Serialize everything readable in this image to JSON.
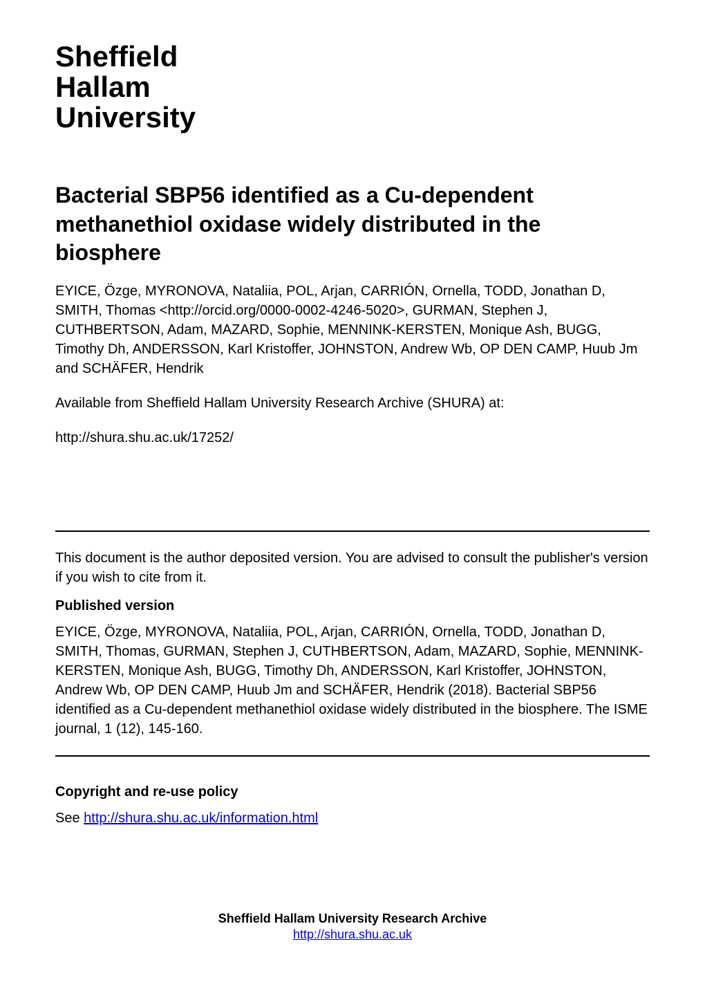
{
  "logo": {
    "line1": "Sheffield",
    "line2": "Hallam",
    "line3": "University"
  },
  "title": "Bacterial SBP56 identified as a Cu-dependent methanethiol oxidase widely distributed in the biosphere",
  "authors": "EYICE, Özge, MYRONOVA, Nataliia, POL, Arjan, CARRIÓN, Ornella, TODD, Jonathan D, SMITH, Thomas <http://orcid.org/0000-0002-4246-5020>, GURMAN, Stephen J, CUTHBERTSON, Adam, MAZARD, Sophie, MENNINK-KERSTEN, Monique Ash, BUGG, Timothy Dh, ANDERSSON, Karl Kristoffer, JOHNSTON, Andrew Wb, OP DEN CAMP, Huub Jm and SCHÄFER, Hendrik",
  "archive_note": "Available from Sheffield Hallam University Research Archive (SHURA) at:",
  "url": "http://shura.shu.ac.uk/17252/",
  "deposit_note": "This document is the author deposited version.  You are advised to consult the publisher's version if you wish to cite from it.",
  "published_version_heading": "Published version",
  "citation": "EYICE, Özge, MYRONOVA, Nataliia, POL, Arjan, CARRIÓN, Ornella, TODD, Jonathan D, SMITH, Thomas, GURMAN, Stephen J, CUTHBERTSON, Adam, MAZARD, Sophie, MENNINK-KERSTEN, Monique Ash, BUGG, Timothy Dh, ANDERSSON, Karl Kristoffer, JOHNSTON, Andrew Wb, OP DEN CAMP, Huub Jm and SCHÄFER, Hendrik (2018). Bacterial SBP56 identified as a Cu-dependent methanethiol oxidase widely distributed in the biosphere. The ISME journal, 1 (12), 145-160.",
  "copyright_heading": "Copyright and re-use policy",
  "copyright_see": "See ",
  "copyright_link_text": "http://shura.shu.ac.uk/information.html",
  "footer_title": "Sheffield Hallam University Research Archive",
  "footer_link": "http://shura.shu.ac.uk"
}
